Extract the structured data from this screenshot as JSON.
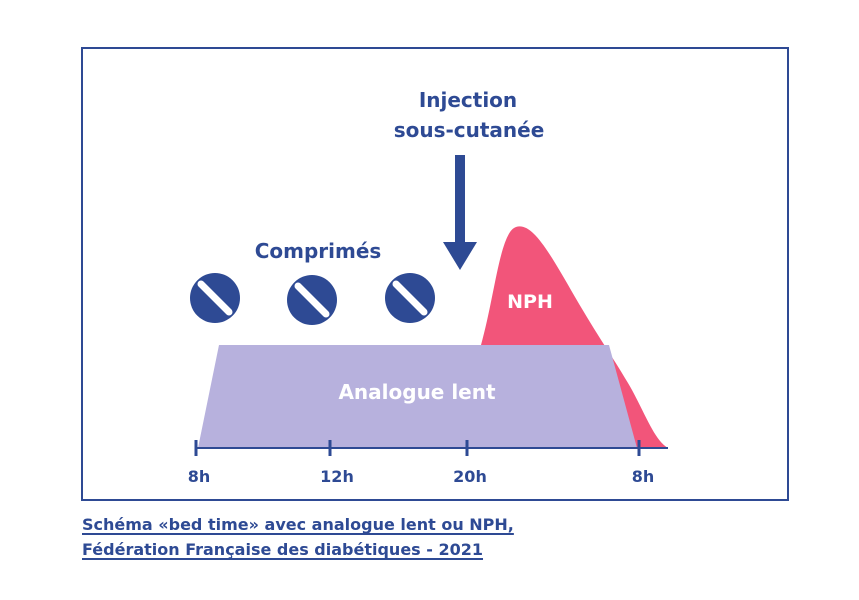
{
  "diagram": {
    "injection_label_line1": "Injection",
    "injection_label_line2": "sous-cutanée",
    "tablets_label": "Comprimés",
    "nph_label": "NPH",
    "analogue_label": "Analogue lent",
    "ticks": [
      "8h",
      "12h",
      "20h",
      "8h"
    ],
    "colors": {
      "navy": "#2e4a94",
      "nph_pink": "#f2557a",
      "analogue_lavender": "#b7b1dd",
      "frame": "#2e4a94"
    }
  },
  "caption": {
    "line1": "Schéma «bed time» avec analogue lent ou NPH,",
    "line2": "Fédération Française des diabétiques - 2021"
  }
}
